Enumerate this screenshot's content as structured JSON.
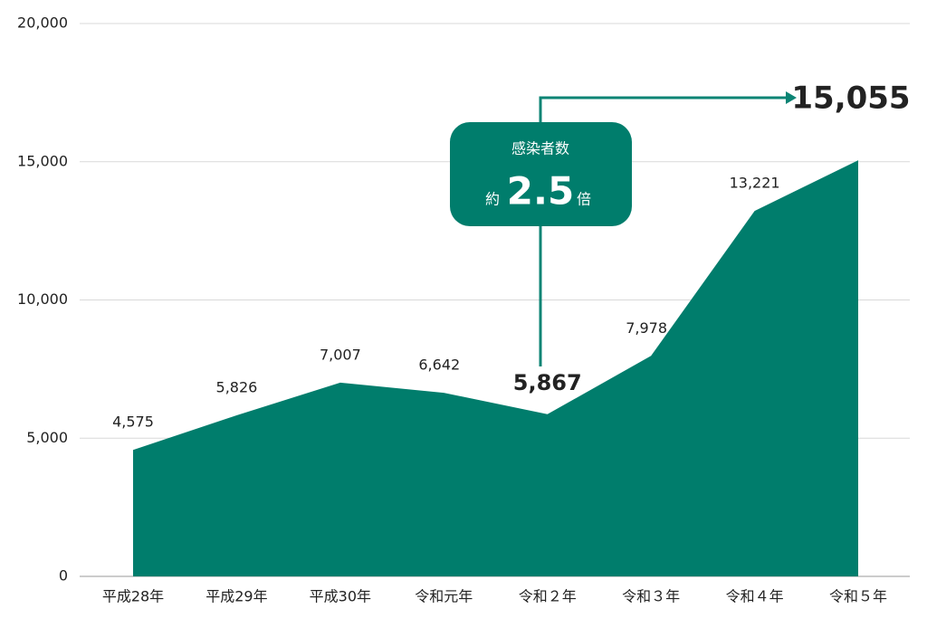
{
  "chart_data": {
    "type": "area",
    "categories": [
      "平成28年",
      "平成29年",
      "平成30年",
      "令和元年",
      "令和２年",
      "令和３年",
      "令和４年",
      "令和５年"
    ],
    "values": [
      4575,
      5826,
      7007,
      6642,
      5867,
      7978,
      13221,
      15055
    ],
    "value_labels": [
      "4,575",
      "5,826",
      "7,007",
      "6,642",
      "5,867",
      "7,978",
      "13,221",
      "15,055"
    ],
    "color": "#007d6c",
    "highlight_color": "#0b8474",
    "highlight": [
      4,
      7
    ],
    "ylim": [
      0,
      20000
    ],
    "yticks": [
      0,
      {
        "value": 5000,
        "label": "5,000"
      },
      {
        "value": 10000,
        "label": "10,000"
      },
      {
        "value": 15000,
        "label": "15,000"
      },
      {
        "value": 20000,
        "label": "20,000"
      }
    ],
    "grid": true,
    "annotation": {
      "title": "感染者数",
      "prefix": "約",
      "value": 2.5,
      "suffix": "倍"
    }
  }
}
